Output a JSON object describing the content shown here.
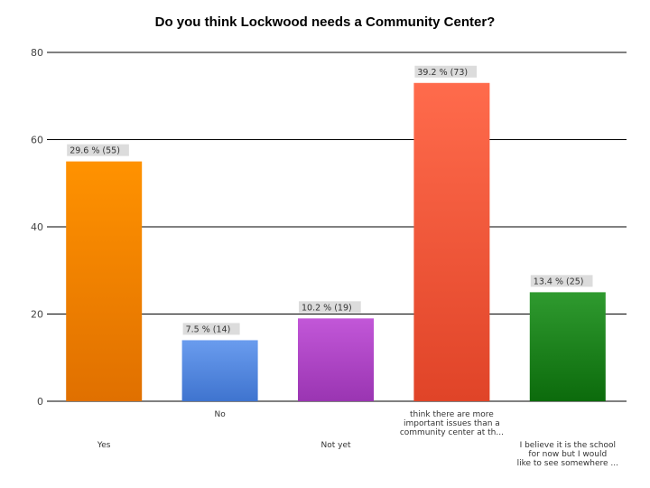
{
  "chart_data": {
    "type": "bar",
    "title": "Do you think Lockwood needs a Community Center?",
    "xlabel": "",
    "ylabel": "",
    "ylim": [
      0,
      80
    ],
    "yticks": [
      0,
      20,
      40,
      60,
      80
    ],
    "grid": true,
    "categories": [
      {
        "lines": [
          "Yes"
        ],
        "row": "lower"
      },
      {
        "lines": [
          "No"
        ],
        "row": "upper"
      },
      {
        "lines": [
          "Not yet"
        ],
        "row": "lower"
      },
      {
        "lines": [
          "think there are more",
          "important issues than a",
          "community center at th..."
        ],
        "row": "upper"
      },
      {
        "lines": [
          "I believe it is the school",
          "for now but I would",
          "like to see somewhere ..."
        ],
        "row": "lower"
      }
    ],
    "values": [
      55,
      14,
      19,
      73,
      25
    ],
    "data_labels": [
      "29.6 % (55)",
      "7.5 % (14)",
      "10.2 % (19)",
      "39.2 % (73)",
      "13.4 % (25)"
    ],
    "colors": [
      [
        "#ff9200",
        "#e07000"
      ],
      [
        "#6a9cee",
        "#3f74cf"
      ],
      [
        "#c257d8",
        "#9a35b2"
      ],
      [
        "#ff6b4c",
        "#e04428"
      ],
      [
        "#2f9a2f",
        "#0c6b0c"
      ]
    ]
  }
}
